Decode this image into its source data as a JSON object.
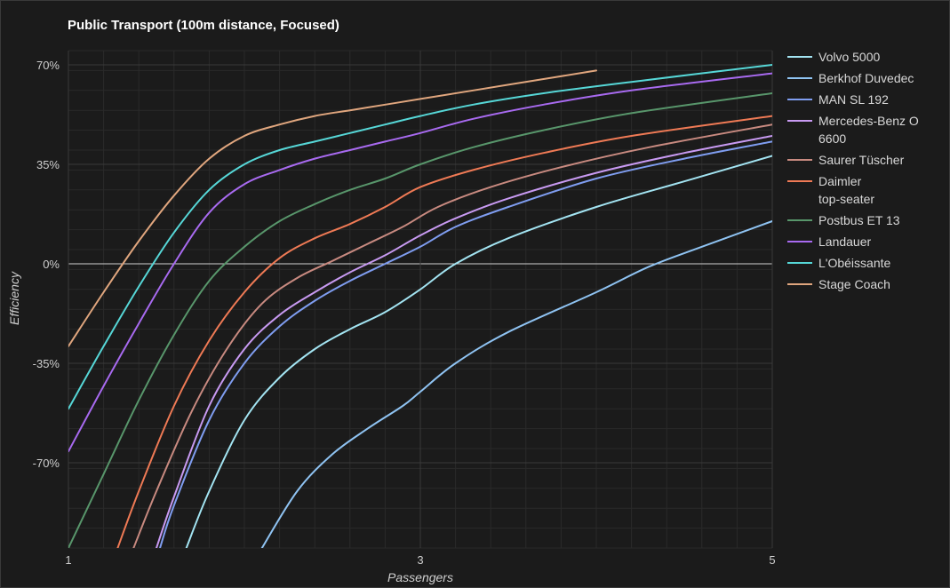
{
  "chart_data": {
    "type": "line",
    "title": "Public Transport (100m distance, Focused)",
    "xlabel": "Passengers",
    "ylabel": "Efficiency",
    "xlim": [
      1,
      5
    ],
    "ylim": [
      -100,
      75
    ],
    "x_ticks": [
      1,
      3,
      5
    ],
    "x_tick_labels": [
      "1",
      "3",
      "5"
    ],
    "y_ticks": [
      70,
      35,
      0,
      -35,
      -70
    ],
    "y_tick_labels": [
      "70%",
      "35%",
      "0%",
      "-35%",
      "-70%"
    ],
    "grid": true,
    "legend_position": "right",
    "series": [
      {
        "name": "Volvo 5000",
        "color": "#a3e4f2",
        "x": [
          1.67,
          1.8,
          2.0,
          2.2,
          2.4,
          2.6,
          2.8,
          3.0,
          3.2,
          3.5,
          4.0,
          4.5,
          5.0
        ],
        "y": [
          -100,
          -80,
          -55,
          -40,
          -30,
          -23,
          -17,
          -9,
          0,
          9,
          20,
          29,
          38
        ]
      },
      {
        "name": "Berkhof Duvedec",
        "color": "#8fc3f2",
        "x": [
          2.1,
          2.3,
          2.5,
          2.7,
          2.9,
          3.0,
          3.2,
          3.5,
          4.0,
          4.3,
          4.6,
          5.0
        ],
        "y": [
          -100,
          -80,
          -67,
          -58,
          -50,
          -45,
          -35,
          -24,
          -10,
          -1,
          6,
          15
        ]
      },
      {
        "name": "MAN SL 192",
        "color": "#7f9df0",
        "x": [
          1.52,
          1.6,
          1.8,
          2.0,
          2.2,
          2.4,
          2.6,
          2.8,
          3.0,
          3.2,
          3.5,
          4.0,
          4.5,
          5.0
        ],
        "y": [
          -100,
          -85,
          -55,
          -35,
          -22,
          -13,
          -6,
          0,
          6,
          13,
          20,
          30,
          37,
          43
        ]
      },
      {
        "name": "Mercedes-Benz O 6600",
        "color": "#c89af2",
        "x": [
          1.5,
          1.6,
          1.8,
          2.0,
          2.2,
          2.4,
          2.6,
          2.8,
          3.0,
          3.2,
          3.5,
          4.0,
          4.5,
          5.0
        ],
        "y": [
          -100,
          -82,
          -50,
          -30,
          -18,
          -10,
          -3,
          3,
          10,
          16,
          23,
          32,
          39,
          45
        ]
      },
      {
        "name": "Saurer Tüscher",
        "color": "#c88a80",
        "x": [
          1.37,
          1.5,
          1.7,
          1.9,
          2.1,
          2.3,
          2.5,
          2.7,
          2.9,
          3.1,
          3.4,
          3.8,
          4.3,
          5.0
        ],
        "y": [
          -100,
          -80,
          -52,
          -30,
          -14,
          -5,
          1,
          7,
          13,
          20,
          27,
          34,
          41,
          49
        ]
      },
      {
        "name": "Daimler top-seater",
        "color": "#ef7a55",
        "x": [
          1.28,
          1.4,
          1.6,
          1.8,
          2.0,
          2.2,
          2.4,
          2.6,
          2.8,
          3.0,
          3.3,
          3.7,
          4.2,
          5.0
        ],
        "y": [
          -100,
          -80,
          -50,
          -27,
          -10,
          2,
          9,
          14,
          20,
          27,
          33,
          39,
          45,
          52
        ]
      },
      {
        "name": "Postbus ET 13",
        "color": "#58966b",
        "x": [
          1.0,
          1.2,
          1.4,
          1.6,
          1.8,
          2.0,
          2.2,
          2.4,
          2.6,
          2.8,
          3.0,
          3.3,
          3.7,
          4.2,
          5.0
        ],
        "y": [
          -100,
          -74,
          -48,
          -25,
          -6,
          6,
          15,
          21,
          26,
          30,
          35,
          41,
          47,
          53,
          60
        ]
      },
      {
        "name": "Landauer",
        "color": "#a86af0",
        "x": [
          1.0,
          1.2,
          1.4,
          1.6,
          1.8,
          2.0,
          2.2,
          2.4,
          2.6,
          2.8,
          3.0,
          3.3,
          3.7,
          4.2,
          5.0
        ],
        "y": [
          -66,
          -43,
          -21,
          0,
          18,
          28,
          33,
          37,
          40,
          43,
          46,
          51,
          56,
          61,
          67
        ]
      },
      {
        "name": "L'Obéissante",
        "color": "#56d7d7",
        "x": [
          1.0,
          1.2,
          1.4,
          1.6,
          1.8,
          2.0,
          2.2,
          2.4,
          2.6,
          2.8,
          3.0,
          3.3,
          3.7,
          4.2,
          5.0
        ],
        "y": [
          -51,
          -29,
          -8,
          11,
          26,
          35,
          40,
          43,
          46,
          49,
          52,
          56,
          60,
          64,
          70
        ]
      },
      {
        "name": "Stage Coach",
        "color": "#e0a67e",
        "x": [
          1.0,
          1.2,
          1.4,
          1.6,
          1.8,
          2.0,
          2.2,
          2.4,
          2.6,
          2.8,
          3.0,
          3.3,
          3.7,
          4.0
        ],
        "y": [
          -29,
          -10,
          8,
          24,
          37,
          45,
          49,
          52,
          54,
          56,
          58,
          61,
          65,
          68
        ]
      }
    ]
  }
}
